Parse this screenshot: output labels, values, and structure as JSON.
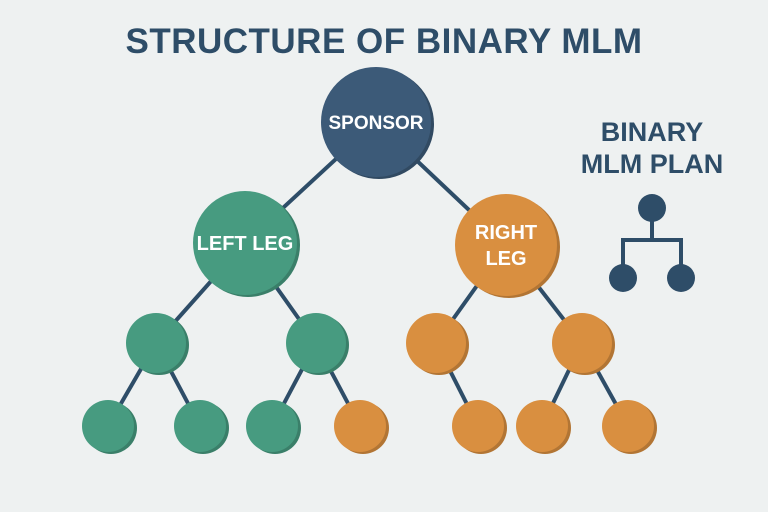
{
  "title": "STRUCTURE OF BINARY MLM",
  "side_title": [
    "BINARY",
    "MLM PLAN"
  ],
  "icon": "binary-tree-icon",
  "colors": {
    "sponsor": "#3c5a78",
    "left": "#479b80",
    "right": "#d98f40",
    "line": "#2e4d68",
    "icon": "#2e4d68"
  },
  "nodes": [
    {
      "id": "sponsor",
      "label": [
        "SPONSOR"
      ],
      "color": "sponsor"
    },
    {
      "id": "left",
      "parent": "sponsor",
      "label": [
        "LEFT LEG"
      ],
      "color": "left"
    },
    {
      "id": "right",
      "parent": "sponsor",
      "label": [
        "RIGHT",
        "LEG"
      ],
      "color": "right"
    },
    {
      "id": "l1",
      "parent": "left",
      "color": "left"
    },
    {
      "id": "l2",
      "parent": "left",
      "color": "left"
    },
    {
      "id": "r1",
      "parent": "right",
      "color": "right"
    },
    {
      "id": "r2",
      "parent": "right",
      "color": "right"
    },
    {
      "id": "l1a",
      "parent": "l1",
      "color": "left"
    },
    {
      "id": "l1b",
      "parent": "l1",
      "color": "left"
    },
    {
      "id": "l2a",
      "parent": "l2",
      "color": "left"
    },
    {
      "id": "l2b",
      "parent": "l2",
      "color": "right"
    },
    {
      "id": "r1a",
      "parent": "r1",
      "color": "right"
    },
    {
      "id": "r2a",
      "parent": "r2",
      "color": "right"
    },
    {
      "id": "r2b",
      "parent": "r2",
      "color": "right"
    }
  ]
}
